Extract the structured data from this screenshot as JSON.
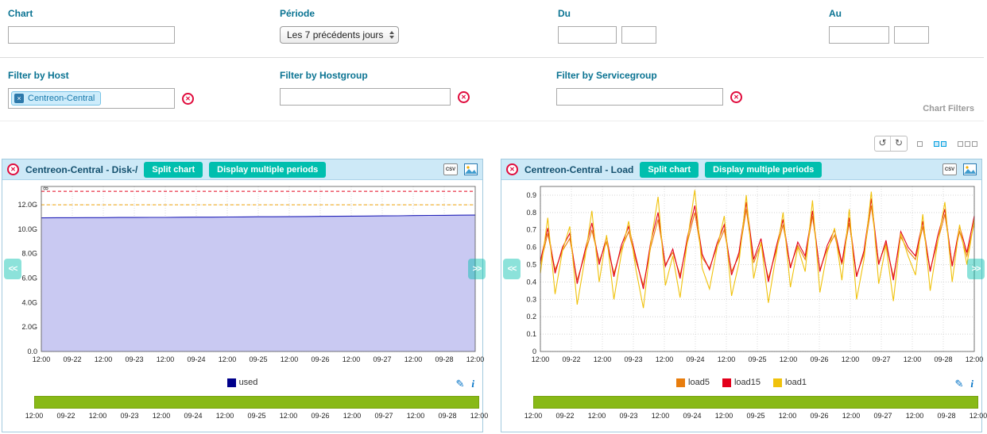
{
  "filters": {
    "chart_label": "Chart",
    "chart_value": "",
    "periode_label": "Période",
    "periode_value": "Les 7 précédents jours",
    "du_label": "Du",
    "du_date": "",
    "du_time": "",
    "au_label": "Au",
    "au_date": "",
    "au_time": "",
    "host_label": "Filter by Host",
    "host_chip": "Centreon-Central",
    "hostgroup_label": "Filter by Hostgroup",
    "hostgroup_value": "",
    "servicegroup_label": "Filter by Servicegroup",
    "servicegroup_value": "",
    "section_label": "Chart Filters"
  },
  "panel_buttons": {
    "split": "Split chart",
    "multiple": "Display multiple periods"
  },
  "icons": {
    "close": "✕",
    "chip_remove": "×",
    "csv": "CSV",
    "pencil": "✎",
    "info": "i",
    "nav_left": "<<",
    "nav_right": ">>",
    "refresh_ccw": "↺",
    "refresh_cw": "↻"
  },
  "chart_data": [
    {
      "type": "area",
      "title": "Centreon-Central - Disk-/",
      "ylim": [
        0,
        13.5
      ],
      "ytick_values": [
        0,
        2,
        4,
        6,
        8,
        10,
        12
      ],
      "ytick_labels": [
        "0.0",
        "2.0G",
        "4.0G",
        "6.0G",
        "8.0G",
        "10.0G",
        "12.0G"
      ],
      "xtick_labels": [
        "12:00",
        "09-22",
        "12:00",
        "09-23",
        "12:00",
        "09-24",
        "12:00",
        "09-25",
        "12:00",
        "09-26",
        "12:00",
        "09-27",
        "12:00",
        "09-28",
        "12:00"
      ],
      "rotated_label": "8",
      "grid": true,
      "legend_position": "bottom",
      "series": [
        {
          "name": "used",
          "color": "#2222b8",
          "fill": "#c9c9f2",
          "values": [
            10.93,
            10.94,
            10.94,
            10.95,
            10.95,
            10.96,
            10.96,
            10.97,
            10.97,
            10.98,
            10.99,
            10.99,
            11.0,
            11.01,
            11.02,
            11.02,
            11.03,
            11.04,
            11.05,
            11.06,
            11.07,
            11.08,
            11.09,
            11.1,
            11.12,
            11.13,
            11.14,
            11.15,
            11.16
          ]
        }
      ],
      "thresholds": [
        {
          "name": "warning",
          "value": 12.0,
          "color": "#f0a30a"
        },
        {
          "name": "critical",
          "value": 13.1,
          "color": "#e3001b"
        }
      ],
      "legend": [
        {
          "label": "used",
          "color": "#00008b"
        }
      ],
      "timeline_color": "#88b917"
    },
    {
      "type": "line",
      "title": "Centreon-Central - Load",
      "ylim": [
        0,
        0.95
      ],
      "ytick_values": [
        0,
        0.1,
        0.2,
        0.3,
        0.4,
        0.5,
        0.6,
        0.7,
        0.8,
        0.9
      ],
      "ytick_labels": [
        "0",
        "0.1",
        "0.2",
        "0.3",
        "0.4",
        "0.5",
        "0.6",
        "0.7",
        "0.8",
        "0.9"
      ],
      "xtick_labels": [
        "12:00",
        "09-22",
        "12:00",
        "09-23",
        "12:00",
        "09-24",
        "12:00",
        "09-25",
        "12:00",
        "09-26",
        "12:00",
        "09-27",
        "12:00",
        "09-28",
        "12:00"
      ],
      "grid": true,
      "legend_position": "bottom",
      "series": [
        {
          "name": "load5",
          "color": "#e87d0d",
          "values": [
            0.5,
            0.68,
            0.47,
            0.58,
            0.65,
            0.41,
            0.55,
            0.7,
            0.52,
            0.63,
            0.45,
            0.59,
            0.69,
            0.52,
            0.38,
            0.6,
            0.76,
            0.5,
            0.57,
            0.44,
            0.63,
            0.8,
            0.54,
            0.48,
            0.6,
            0.7,
            0.46,
            0.55,
            0.82,
            0.51,
            0.62,
            0.42,
            0.57,
            0.73,
            0.49,
            0.61,
            0.53,
            0.78,
            0.47,
            0.59,
            0.67,
            0.5,
            0.74,
            0.44,
            0.56,
            0.84,
            0.51,
            0.62,
            0.43,
            0.66,
            0.58,
            0.53,
            0.72,
            0.47,
            0.63,
            0.79,
            0.5,
            0.69,
            0.55,
            0.74
          ]
        },
        {
          "name": "load15",
          "color": "#e3001b",
          "values": [
            0.52,
            0.71,
            0.45,
            0.6,
            0.68,
            0.39,
            0.57,
            0.74,
            0.5,
            0.66,
            0.43,
            0.61,
            0.72,
            0.54,
            0.36,
            0.63,
            0.8,
            0.49,
            0.59,
            0.42,
            0.66,
            0.84,
            0.56,
            0.47,
            0.62,
            0.73,
            0.44,
            0.57,
            0.86,
            0.53,
            0.65,
            0.4,
            0.59,
            0.76,
            0.48,
            0.63,
            0.55,
            0.81,
            0.46,
            0.61,
            0.7,
            0.51,
            0.77,
            0.43,
            0.58,
            0.88,
            0.5,
            0.64,
            0.41,
            0.69,
            0.6,
            0.55,
            0.75,
            0.46,
            0.66,
            0.82,
            0.49,
            0.72,
            0.57,
            0.78
          ]
        },
        {
          "name": "load1",
          "color": "#f0c20c",
          "values": [
            0.45,
            0.77,
            0.33,
            0.58,
            0.72,
            0.27,
            0.52,
            0.81,
            0.4,
            0.67,
            0.3,
            0.56,
            0.75,
            0.47,
            0.25,
            0.62,
            0.89,
            0.38,
            0.55,
            0.31,
            0.64,
            0.93,
            0.48,
            0.36,
            0.59,
            0.78,
            0.32,
            0.51,
            0.9,
            0.42,
            0.63,
            0.28,
            0.54,
            0.8,
            0.37,
            0.6,
            0.46,
            0.87,
            0.34,
            0.57,
            0.71,
            0.41,
            0.82,
            0.3,
            0.53,
            0.92,
            0.39,
            0.61,
            0.29,
            0.68,
            0.55,
            0.44,
            0.79,
            0.35,
            0.62,
            0.86,
            0.4,
            0.73,
            0.5,
            0.76
          ]
        }
      ],
      "legend": [
        {
          "label": "load5",
          "color": "#e87d0d"
        },
        {
          "label": "load15",
          "color": "#e3001b"
        },
        {
          "label": "load1",
          "color": "#f0c20c"
        }
      ],
      "timeline_color": "#88b917"
    }
  ]
}
